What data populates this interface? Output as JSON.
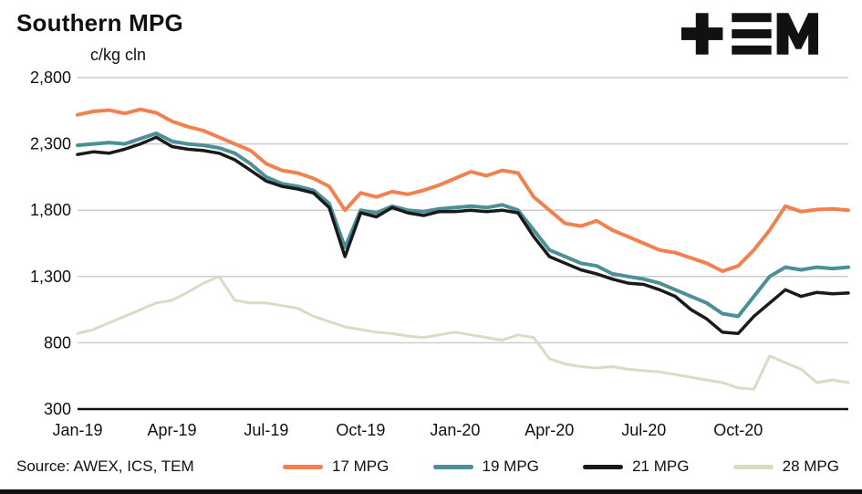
{
  "header": {
    "title": "Southern MPG",
    "logo": "TEM"
  },
  "footer": {
    "source": "Source: AWEX, ICS, TEM"
  },
  "colors": {
    "grid": "#CCCCCC",
    "axis": "#111111",
    "text": "#111111",
    "background": "#FFFFFF"
  },
  "chart_data": {
    "type": "line",
    "title": "Southern MPG",
    "ylabel": "c/kg cln",
    "xlabel": "",
    "grid": "horizontal",
    "legend_position": "bottom",
    "ylim": [
      300,
      2800
    ],
    "yticks": [
      300,
      800,
      1300,
      1800,
      2300,
      2800
    ],
    "x_unit": "half-months since Jan-2019",
    "xlim_months": [
      0,
      24.5
    ],
    "xticks": [
      {
        "month": 0,
        "label": "Jan-19"
      },
      {
        "month": 3,
        "label": "Apr-19"
      },
      {
        "month": 6,
        "label": "Jul-19"
      },
      {
        "month": 9,
        "label": "Oct-19"
      },
      {
        "month": 12,
        "label": "Jan-20"
      },
      {
        "month": 15,
        "label": "Apr-20"
      },
      {
        "month": 18,
        "label": "Jul-20"
      },
      {
        "month": 21,
        "label": "Oct-20"
      }
    ],
    "series": [
      {
        "name": "17 MPG",
        "color": "#F1814E",
        "line_width": 4,
        "z": 2,
        "values": [
          2520,
          2545,
          2555,
          2530,
          2560,
          2535,
          2470,
          2430,
          2400,
          2350,
          2300,
          2250,
          2150,
          2100,
          2080,
          2040,
          1980,
          1800,
          1930,
          1900,
          1940,
          1920,
          1950,
          1990,
          2040,
          2090,
          2060,
          2100,
          2080,
          1900,
          1800,
          1700,
          1680,
          1720,
          1650,
          1600,
          1550,
          1500,
          1480,
          1440,
          1400,
          1340,
          1380,
          1500,
          1650,
          1830,
          1790,
          1805,
          1810,
          1800
        ]
      },
      {
        "name": "19 MPG",
        "color": "#4D8F97",
        "line_width": 4,
        "z": 3,
        "values": [
          2290,
          2300,
          2310,
          2300,
          2340,
          2380,
          2320,
          2300,
          2290,
          2270,
          2230,
          2150,
          2050,
          2000,
          1980,
          1950,
          1850,
          1520,
          1800,
          1780,
          1830,
          1800,
          1790,
          1810,
          1820,
          1830,
          1820,
          1840,
          1800,
          1650,
          1500,
          1450,
          1400,
          1380,
          1320,
          1300,
          1280,
          1250,
          1200,
          1150,
          1100,
          1020,
          1000,
          1150,
          1300,
          1370,
          1350,
          1370,
          1360,
          1370
        ]
      },
      {
        "name": "21 MPG",
        "color": "#1A1A1A",
        "line_width": 3.5,
        "z": 4,
        "values": [
          2220,
          2240,
          2230,
          2260,
          2300,
          2350,
          2280,
          2260,
          2250,
          2230,
          2180,
          2100,
          2020,
          1980,
          1960,
          1930,
          1820,
          1450,
          1780,
          1750,
          1820,
          1780,
          1760,
          1790,
          1790,
          1800,
          1790,
          1800,
          1780,
          1600,
          1450,
          1400,
          1350,
          1320,
          1280,
          1250,
          1240,
          1200,
          1150,
          1050,
          980,
          880,
          870,
          1000,
          1100,
          1200,
          1150,
          1180,
          1170,
          1175
        ]
      },
      {
        "name": "28 MPG",
        "color": "#DBDBC4",
        "line_width": 3,
        "z": 1,
        "values": [
          870,
          900,
          950,
          1000,
          1050,
          1100,
          1120,
          1180,
          1250,
          1300,
          1120,
          1100,
          1100,
          1080,
          1060,
          1000,
          960,
          920,
          900,
          880,
          870,
          850,
          840,
          860,
          880,
          860,
          840,
          820,
          860,
          840,
          680,
          640,
          620,
          610,
          620,
          600,
          590,
          580,
          560,
          540,
          520,
          500,
          460,
          450,
          700,
          650,
          600,
          500,
          520,
          500
        ]
      }
    ]
  }
}
